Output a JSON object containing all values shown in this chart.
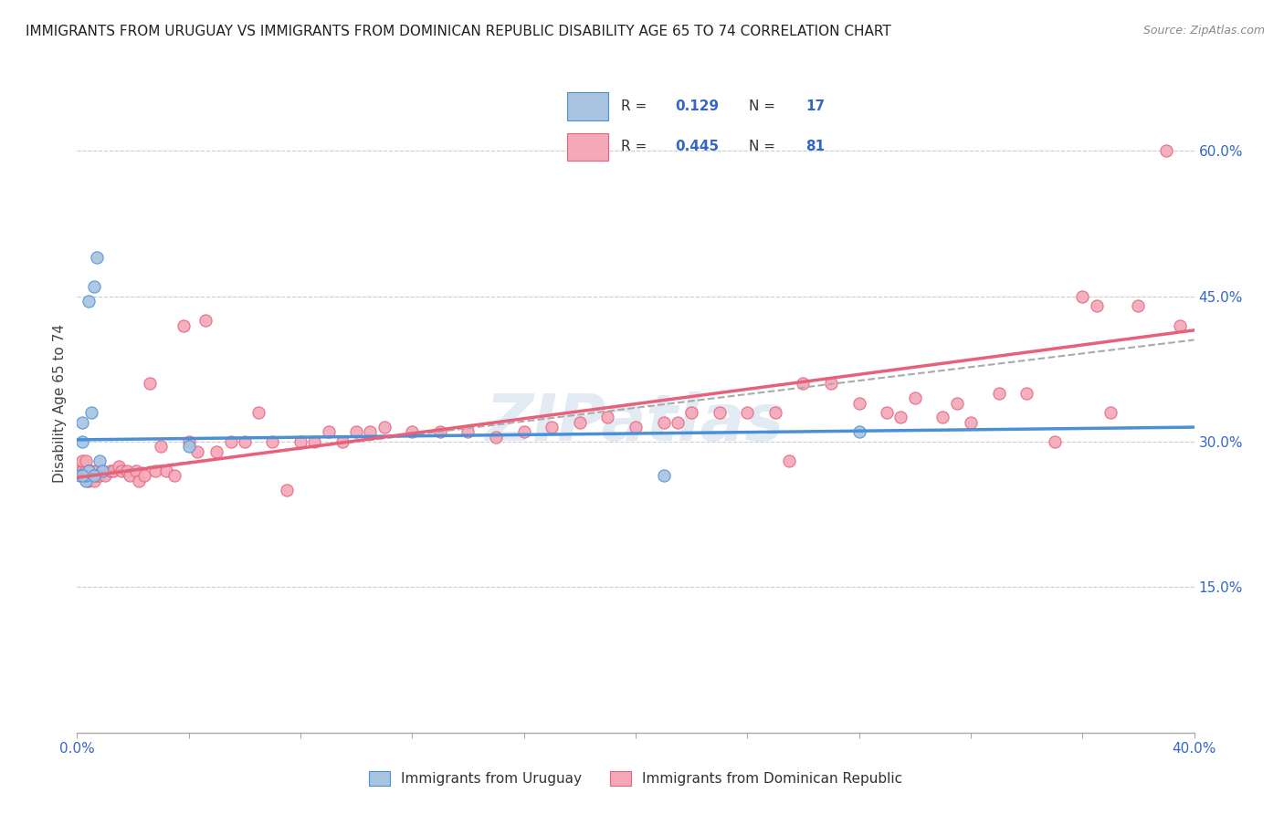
{
  "title": "IMMIGRANTS FROM URUGUAY VS IMMIGRANTS FROM DOMINICAN REPUBLIC DISABILITY AGE 65 TO 74 CORRELATION CHART",
  "source": "Source: ZipAtlas.com",
  "ylabel": "Disability Age 65 to 74",
  "r_uruguay": 0.129,
  "n_uruguay": 17,
  "r_dominican": 0.445,
  "n_dominican": 81,
  "color_uruguay": "#a8c4e0",
  "color_dominican": "#f4a8b8",
  "color_trendline_uruguay": "#4a90d9",
  "color_trendline_dominican": "#e8607a",
  "color_dashed": "#aaaaaa",
  "watermark": "ZIPatlas",
  "xlim": [
    0.0,
    0.4
  ],
  "ylim": [
    0.0,
    0.68
  ],
  "uru_x": [
    0.001,
    0.002,
    0.002,
    0.003,
    0.003,
    0.004,
    0.005,
    0.006,
    0.007,
    0.008,
    0.009,
    0.002,
    0.004,
    0.006,
    0.04,
    0.21,
    0.28
  ],
  "uru_y": [
    0.265,
    0.32,
    0.3,
    0.26,
    0.265,
    0.27,
    0.33,
    0.46,
    0.49,
    0.28,
    0.27,
    0.265,
    0.445,
    0.265,
    0.295,
    0.265,
    0.31
  ],
  "dom_x": [
    0.001,
    0.002,
    0.002,
    0.003,
    0.003,
    0.004,
    0.004,
    0.005,
    0.005,
    0.006,
    0.006,
    0.007,
    0.007,
    0.008,
    0.009,
    0.01,
    0.012,
    0.013,
    0.015,
    0.016,
    0.018,
    0.019,
    0.021,
    0.022,
    0.024,
    0.026,
    0.028,
    0.03,
    0.032,
    0.035,
    0.038,
    0.04,
    0.043,
    0.046,
    0.05,
    0.055,
    0.06,
    0.065,
    0.07,
    0.075,
    0.08,
    0.085,
    0.09,
    0.095,
    0.1,
    0.105,
    0.11,
    0.12,
    0.13,
    0.14,
    0.15,
    0.16,
    0.17,
    0.18,
    0.19,
    0.2,
    0.21,
    0.215,
    0.22,
    0.23,
    0.24,
    0.25,
    0.255,
    0.26,
    0.27,
    0.28,
    0.29,
    0.295,
    0.3,
    0.31,
    0.315,
    0.32,
    0.33,
    0.34,
    0.35,
    0.36,
    0.365,
    0.37,
    0.38,
    0.39,
    0.395
  ],
  "dom_y": [
    0.27,
    0.27,
    0.28,
    0.27,
    0.28,
    0.26,
    0.27,
    0.265,
    0.27,
    0.265,
    0.26,
    0.27,
    0.265,
    0.265,
    0.27,
    0.265,
    0.27,
    0.27,
    0.275,
    0.27,
    0.27,
    0.265,
    0.27,
    0.26,
    0.265,
    0.36,
    0.27,
    0.295,
    0.27,
    0.265,
    0.42,
    0.3,
    0.29,
    0.425,
    0.29,
    0.3,
    0.3,
    0.33,
    0.3,
    0.25,
    0.3,
    0.3,
    0.31,
    0.3,
    0.31,
    0.31,
    0.315,
    0.31,
    0.31,
    0.31,
    0.305,
    0.31,
    0.315,
    0.32,
    0.325,
    0.315,
    0.32,
    0.32,
    0.33,
    0.33,
    0.33,
    0.33,
    0.28,
    0.36,
    0.36,
    0.34,
    0.33,
    0.325,
    0.345,
    0.325,
    0.34,
    0.32,
    0.35,
    0.35,
    0.3,
    0.45,
    0.44,
    0.33,
    0.44,
    0.6,
    0.42
  ],
  "trendline_uru": [
    0.302,
    0.315
  ],
  "trendline_dom": [
    0.263,
    0.415
  ],
  "trendline_dash": [
    0.265,
    0.405
  ]
}
